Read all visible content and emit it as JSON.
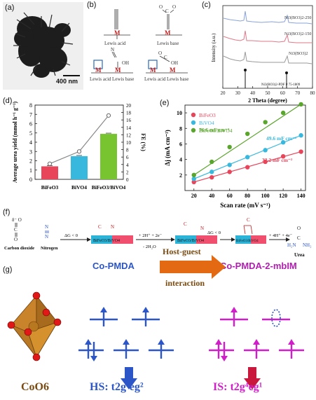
{
  "panels": {
    "a": {
      "label": "(a)",
      "scale_bar": "400 nm"
    },
    "b": {
      "label": "(b)",
      "lewis_acid": "Lewis acid",
      "lewis_base": "Lewis base",
      "atom": "M"
    },
    "c": {
      "label": "(c)",
      "xlabel": "2 Theta (degree)",
      "ylabel": "Intensity (a.u.)",
      "x_ticks": [
        "20",
        "30",
        "40",
        "50",
        "60",
        "70",
        "80"
      ],
      "series": [
        "Ni3(BO3)2-250",
        "Ni3(BO3)2-150",
        "Ni3(BO3)2"
      ],
      "pdf_label": "Ni3(BO3)2-PDF # 75-1809"
    },
    "d": {
      "label": "(d)"
    },
    "e": {
      "label": "(e)"
    },
    "f": {
      "label": "(f)",
      "co2_label": "Carbon dioxide",
      "n2_label": "Nitrogen",
      "dg1": "ΔG < 0",
      "step2": "+ 2H⁺ + 2e⁻",
      "step2b": "- 2H₂O",
      "dg2": "ΔG < 0",
      "step4": "+ 4H⁺ + 4e⁻",
      "catalyst": "BiFeO3/BiVO4",
      "urea": "Urea"
    },
    "g": {
      "label": "(g)",
      "left_title": "Co-PMDA",
      "right_title": "Co-PMDA-2-mbIM",
      "arrow_text_1": "Host-guest",
      "arrow_text_2": "interaction",
      "coo6": "CoO6",
      "hs": "HS: t2g⁴eg²",
      "is": "IS: t2g⁴eg¹"
    }
  },
  "chart_data": [
    {
      "type": "bar",
      "panel": "d",
      "categories": [
        "BiFeO3",
        "BiVO4",
        "BiFeO3/BiVO4"
      ],
      "values": [
        1.4,
        2.5,
        4.9
      ],
      "ylabel": "Average urea yield (mmol h⁻¹ g⁻¹)",
      "ylim": [
        0,
        8
      ],
      "yticks": [
        "0",
        "1",
        "2",
        "3",
        "4",
        "5",
        "6",
        "7",
        "8"
      ],
      "colors": [
        "#e8445a",
        "#39b8dd",
        "#78c430"
      ],
      "secondary": {
        "type": "line",
        "ylabel": "FE (%)",
        "ylim": [
          0,
          20
        ],
        "yticks": [
          "0",
          "2",
          "4",
          "6",
          "8",
          "10",
          "12",
          "14",
          "16",
          "18",
          "20"
        ],
        "values": [
          4.2,
          7.5,
          17.2
        ],
        "color": "#888888"
      }
    },
    {
      "type": "scatter",
      "panel": "e",
      "xlabel": "Scan rate (mV s⁻¹)",
      "ylabel": "Δj (mA cm⁻²)",
      "xlim": [
        20,
        140
      ],
      "ylim": [
        0,
        11
      ],
      "xticks": [
        "20",
        "40",
        "60",
        "80",
        "100",
        "120",
        "140"
      ],
      "yticks": [
        "2",
        "4",
        "6",
        "8",
        "10"
      ],
      "x": [
        20,
        40,
        60,
        80,
        100,
        120,
        140
      ],
      "series": [
        {
          "name": "BiFeO3",
          "color": "#e8445a",
          "values": [
            1.1,
            1.7,
            2.4,
            3.0,
            3.7,
            4.4,
            5.0
          ],
          "slope_label": "33.2 mF cm⁻²"
        },
        {
          "name": "BiVO4",
          "color": "#39b8dd",
          "values": [
            1.5,
            2.4,
            3.3,
            4.3,
            5.2,
            6.2,
            7.1
          ],
          "slope_label": "49.6 mF cm⁻²"
        },
        {
          "name": "BiFeO3/BiVO4",
          "color": "#5aa52c",
          "values": [
            2.0,
            3.7,
            5.6,
            7.3,
            8.8,
            10.0,
            11.1
          ],
          "slope_label": "76.6 mF cm⁻²"
        }
      ]
    }
  ]
}
